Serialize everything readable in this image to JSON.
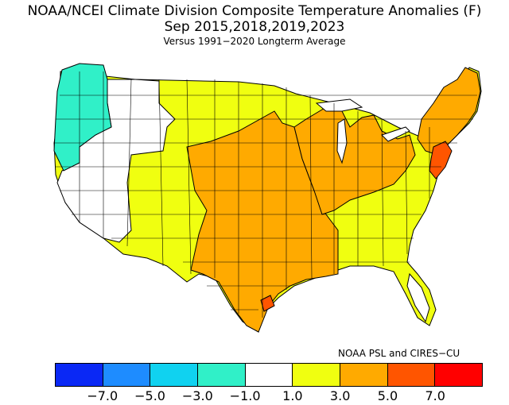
{
  "header": {
    "title": "NOAA/NCEI Climate Division Composite Temperature Anomalies (F)",
    "subtitle": "Sep  2015,2018,2019,2023",
    "baseline": "Versus 1991−2020 Longterm Average"
  },
  "credit": "NOAA PSL and CIRES−CU",
  "legend": {
    "colors": [
      "#0a28f5",
      "#1e8cff",
      "#10d2f0",
      "#30f0c8",
      "#ffffff",
      "#f0ff10",
      "#ffaa00",
      "#ff5500",
      "#ff0000"
    ],
    "labels": [
      "−7.0",
      "−5.0",
      "−3.0",
      "−1.0",
      "1.0",
      "3.0",
      "5.0",
      "7.0"
    ]
  },
  "map": {
    "regions": [
      {
        "id": "pacific-northwest",
        "color": "#30f0c8"
      },
      {
        "id": "west-interior",
        "color": "#ffffff"
      },
      {
        "id": "southwest-plains-south",
        "color": "#f0ff10"
      },
      {
        "id": "central-core",
        "color": "#ffaa00"
      },
      {
        "id": "midwest-ohio-valley",
        "color": "#ffaa00"
      },
      {
        "id": "northeast",
        "color": "#ffaa00"
      },
      {
        "id": "mid-atlantic-coast",
        "color": "#ff5500"
      },
      {
        "id": "gulf-coast-point",
        "color": "#ff5500"
      }
    ]
  }
}
